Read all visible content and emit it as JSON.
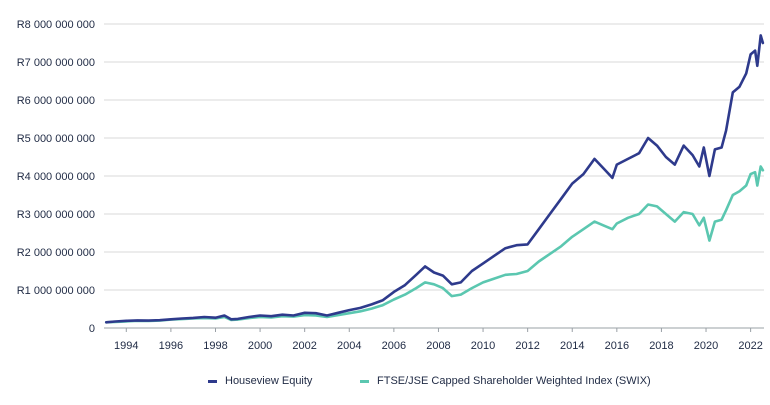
{
  "chart_data": {
    "type": "line",
    "title": "",
    "xlabel": "",
    "ylabel": "",
    "ylim": [
      0,
      8000000000
    ],
    "xlim": [
      1993.0,
      2022.6
    ],
    "grid": "horizontal",
    "legend_position": "bottom",
    "y_ticks": [
      {
        "value": 0,
        "label": "0"
      },
      {
        "value": 1000000000,
        "label": "R1 000 000 000"
      },
      {
        "value": 2000000000,
        "label": "R2 000 000 000"
      },
      {
        "value": 3000000000,
        "label": "R3 000 000 000"
      },
      {
        "value": 4000000000,
        "label": "R4 000 000 000"
      },
      {
        "value": 5000000000,
        "label": "R5 000 000 000"
      },
      {
        "value": 6000000000,
        "label": "R6 000 000 000"
      },
      {
        "value": 7000000000,
        "label": "R7 000 000 000"
      },
      {
        "value": 8000000000,
        "label": "R8 000 000 000"
      }
    ],
    "x_ticks": [
      {
        "value": 1994,
        "label": "1994"
      },
      {
        "value": 1996,
        "label": "1996"
      },
      {
        "value": 1998,
        "label": "1998"
      },
      {
        "value": 2000,
        "label": "2000"
      },
      {
        "value": 2002,
        "label": "2002"
      },
      {
        "value": 2004,
        "label": "2004"
      },
      {
        "value": 2006,
        "label": "2006"
      },
      {
        "value": 2008,
        "label": "2008"
      },
      {
        "value": 2010,
        "label": "2010"
      },
      {
        "value": 2012,
        "label": "2012"
      },
      {
        "value": 2014,
        "label": "2014"
      },
      {
        "value": 2016,
        "label": "2016"
      },
      {
        "value": 2018,
        "label": "2018"
      },
      {
        "value": 2020,
        "label": "2020"
      },
      {
        "value": 2022,
        "label": "2022"
      }
    ],
    "series": [
      {
        "name": "Houseview Equity",
        "color": "#2e3a8c",
        "points": [
          [
            1993.1,
            150000000
          ],
          [
            1993.5,
            170000000
          ],
          [
            1994.0,
            190000000
          ],
          [
            1994.5,
            200000000
          ],
          [
            1995.0,
            195000000
          ],
          [
            1995.5,
            205000000
          ],
          [
            1996.0,
            230000000
          ],
          [
            1996.5,
            250000000
          ],
          [
            1997.0,
            265000000
          ],
          [
            1997.5,
            290000000
          ],
          [
            1998.0,
            270000000
          ],
          [
            1998.4,
            330000000
          ],
          [
            1998.7,
            230000000
          ],
          [
            1999.0,
            240000000
          ],
          [
            1999.5,
            290000000
          ],
          [
            2000.0,
            330000000
          ],
          [
            2000.5,
            310000000
          ],
          [
            2001.0,
            350000000
          ],
          [
            2001.5,
            330000000
          ],
          [
            2002.0,
            400000000
          ],
          [
            2002.5,
            390000000
          ],
          [
            2003.0,
            330000000
          ],
          [
            2003.5,
            400000000
          ],
          [
            2004.0,
            470000000
          ],
          [
            2004.5,
            530000000
          ],
          [
            2005.0,
            620000000
          ],
          [
            2005.5,
            730000000
          ],
          [
            2006.0,
            950000000
          ],
          [
            2006.5,
            1130000000
          ],
          [
            2007.0,
            1400000000
          ],
          [
            2007.4,
            1620000000
          ],
          [
            2007.8,
            1460000000
          ],
          [
            2008.2,
            1380000000
          ],
          [
            2008.6,
            1150000000
          ],
          [
            2009.0,
            1200000000
          ],
          [
            2009.5,
            1500000000
          ],
          [
            2010.0,
            1700000000
          ],
          [
            2010.5,
            1900000000
          ],
          [
            2011.0,
            2100000000
          ],
          [
            2011.5,
            2180000000
          ],
          [
            2012.0,
            2200000000
          ],
          [
            2012.5,
            2600000000
          ],
          [
            2013.0,
            3000000000
          ],
          [
            2013.5,
            3400000000
          ],
          [
            2014.0,
            3800000000
          ],
          [
            2014.5,
            4050000000
          ],
          [
            2015.0,
            4450000000
          ],
          [
            2015.4,
            4200000000
          ],
          [
            2015.8,
            3950000000
          ],
          [
            2016.0,
            4300000000
          ],
          [
            2016.5,
            4450000000
          ],
          [
            2017.0,
            4600000000
          ],
          [
            2017.4,
            5000000000
          ],
          [
            2017.8,
            4800000000
          ],
          [
            2018.2,
            4500000000
          ],
          [
            2018.6,
            4300000000
          ],
          [
            2019.0,
            4800000000
          ],
          [
            2019.4,
            4550000000
          ],
          [
            2019.7,
            4250000000
          ],
          [
            2019.9,
            4750000000
          ],
          [
            2020.15,
            4000000000
          ],
          [
            2020.4,
            4700000000
          ],
          [
            2020.7,
            4750000000
          ],
          [
            2020.9,
            5200000000
          ],
          [
            2021.2,
            6200000000
          ],
          [
            2021.5,
            6350000000
          ],
          [
            2021.8,
            6700000000
          ],
          [
            2022.0,
            7200000000
          ],
          [
            2022.2,
            7300000000
          ],
          [
            2022.3,
            6900000000
          ],
          [
            2022.45,
            7700000000
          ],
          [
            2022.55,
            7500000000
          ]
        ]
      },
      {
        "name": "FTSE/JSE Capped Shareholder Weighted Index (SWIX)",
        "color": "#5bc7b0",
        "points": [
          [
            1993.1,
            150000000
          ],
          [
            1993.5,
            160000000
          ],
          [
            1994.0,
            175000000
          ],
          [
            1994.5,
            190000000
          ],
          [
            1995.0,
            185000000
          ],
          [
            1995.5,
            195000000
          ],
          [
            1996.0,
            220000000
          ],
          [
            1996.5,
            235000000
          ],
          [
            1997.0,
            250000000
          ],
          [
            1997.5,
            260000000
          ],
          [
            1998.0,
            250000000
          ],
          [
            1998.4,
            290000000
          ],
          [
            1998.7,
            210000000
          ],
          [
            1999.0,
            220000000
          ],
          [
            1999.5,
            260000000
          ],
          [
            2000.0,
            290000000
          ],
          [
            2000.5,
            280000000
          ],
          [
            2001.0,
            310000000
          ],
          [
            2001.5,
            300000000
          ],
          [
            2002.0,
            340000000
          ],
          [
            2002.5,
            330000000
          ],
          [
            2003.0,
            290000000
          ],
          [
            2003.5,
            340000000
          ],
          [
            2004.0,
            390000000
          ],
          [
            2004.5,
            440000000
          ],
          [
            2005.0,
            510000000
          ],
          [
            2005.5,
            600000000
          ],
          [
            2006.0,
            750000000
          ],
          [
            2006.5,
            880000000
          ],
          [
            2007.0,
            1050000000
          ],
          [
            2007.4,
            1200000000
          ],
          [
            2007.8,
            1150000000
          ],
          [
            2008.2,
            1050000000
          ],
          [
            2008.6,
            840000000
          ],
          [
            2009.0,
            880000000
          ],
          [
            2009.5,
            1050000000
          ],
          [
            2010.0,
            1200000000
          ],
          [
            2010.5,
            1300000000
          ],
          [
            2011.0,
            1400000000
          ],
          [
            2011.5,
            1420000000
          ],
          [
            2012.0,
            1500000000
          ],
          [
            2012.5,
            1750000000
          ],
          [
            2013.0,
            1950000000
          ],
          [
            2013.5,
            2150000000
          ],
          [
            2014.0,
            2400000000
          ],
          [
            2014.5,
            2600000000
          ],
          [
            2015.0,
            2800000000
          ],
          [
            2015.4,
            2700000000
          ],
          [
            2015.8,
            2600000000
          ],
          [
            2016.0,
            2750000000
          ],
          [
            2016.5,
            2900000000
          ],
          [
            2017.0,
            3000000000
          ],
          [
            2017.4,
            3250000000
          ],
          [
            2017.8,
            3200000000
          ],
          [
            2018.2,
            3000000000
          ],
          [
            2018.6,
            2800000000
          ],
          [
            2019.0,
            3050000000
          ],
          [
            2019.4,
            3000000000
          ],
          [
            2019.7,
            2700000000
          ],
          [
            2019.9,
            2900000000
          ],
          [
            2020.15,
            2300000000
          ],
          [
            2020.4,
            2800000000
          ],
          [
            2020.7,
            2850000000
          ],
          [
            2020.9,
            3100000000
          ],
          [
            2021.2,
            3500000000
          ],
          [
            2021.5,
            3600000000
          ],
          [
            2021.8,
            3750000000
          ],
          [
            2022.0,
            4050000000
          ],
          [
            2022.2,
            4100000000
          ],
          [
            2022.3,
            3750000000
          ],
          [
            2022.45,
            4250000000
          ],
          [
            2022.55,
            4150000000
          ]
        ]
      }
    ]
  }
}
